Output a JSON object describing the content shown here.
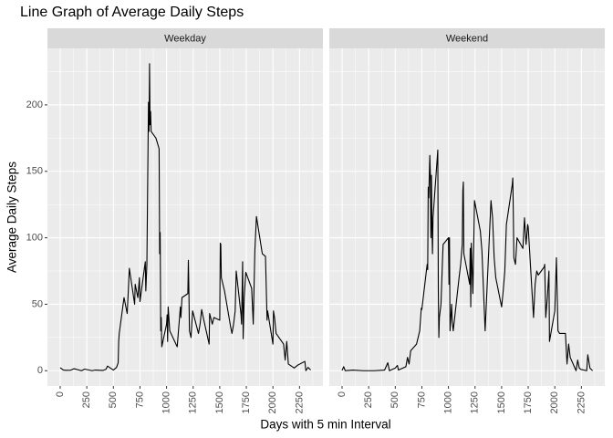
{
  "title": "Line Graph of Average Daily Steps",
  "x_label": "Days with 5 min Interval",
  "y_label": "Average Daily Steps",
  "chart_data": [
    {
      "type": "line",
      "title": "Weekday",
      "x": [
        0,
        30,
        55,
        100,
        130,
        200,
        230,
        300,
        330,
        400,
        430,
        445,
        500,
        530,
        545,
        550,
        555,
        600,
        630,
        645,
        650,
        700,
        705,
        730,
        745,
        750,
        800,
        805,
        815,
        830,
        835,
        840,
        845,
        850,
        855,
        900,
        930,
        935,
        940,
        945,
        950,
        955,
        1000,
        1005,
        1010,
        1015,
        1030,
        1100,
        1130,
        1135,
        1145,
        1200,
        1205,
        1210,
        1215,
        1230,
        1245,
        1300,
        1315,
        1330,
        1345,
        1400,
        1405,
        1430,
        1445,
        1500,
        1505,
        1510,
        1515,
        1545,
        1600,
        1615,
        1630,
        1645,
        1655,
        1700,
        1705,
        1715,
        1720,
        1730,
        1745,
        1800,
        1815,
        1830,
        1845,
        1900,
        1930,
        1945,
        1950,
        2000,
        2005,
        2015,
        2030,
        2100,
        2115,
        2130,
        2145,
        2200,
        2230,
        2300,
        2310,
        2330,
        2355
      ],
      "series": [
        {
          "color": "#000000",
          "values": [
            2.3,
            0.5,
            0.3,
            0.4,
            1.5,
            0,
            1.2,
            0,
            0.5,
            0.2,
            1,
            3.5,
            0.5,
            2.5,
            6,
            22,
            28,
            55,
            43,
            68,
            77,
            50,
            65,
            55,
            70,
            52,
            82,
            60,
            80,
            202,
            180,
            231,
            185,
            195,
            180,
            175,
            167,
            88,
            104,
            30,
            40,
            18,
            35,
            42,
            22,
            48,
            30,
            18,
            48,
            40,
            55,
            58,
            83,
            60,
            30,
            25,
            45,
            28,
            35,
            46,
            40,
            20,
            43,
            35,
            40,
            38,
            96,
            95,
            70,
            60,
            34,
            28,
            35,
            45,
            75,
            42,
            35,
            82,
            24,
            55,
            74,
            62,
            35,
            90,
            116,
            88,
            86,
            38,
            45,
            20,
            45,
            40,
            28,
            20,
            8,
            22,
            5,
            2,
            4,
            7,
            0,
            2.5,
            0.5
          ]
        }
      ],
      "xlim": [
        -120,
        2470
      ],
      "ylim": [
        -11.5,
        242.5
      ],
      "xticks": [
        0,
        250,
        500,
        750,
        1000,
        1250,
        1500,
        1750,
        2000,
        2250
      ],
      "yticks": [
        0,
        50,
        100,
        150,
        200
      ],
      "grid": true
    },
    {
      "type": "line",
      "title": "Weekend",
      "x": [
        0,
        15,
        30,
        100,
        200,
        300,
        400,
        430,
        445,
        500,
        520,
        530,
        600,
        615,
        630,
        645,
        700,
        715,
        730,
        745,
        750,
        800,
        805,
        810,
        815,
        825,
        830,
        835,
        840,
        845,
        850,
        855,
        900,
        905,
        910,
        915,
        930,
        945,
        950,
        1000,
        1005,
        1010,
        1015,
        1030,
        1035,
        1045,
        1100,
        1115,
        1130,
        1135,
        1140,
        1145,
        1200,
        1205,
        1210,
        1215,
        1230,
        1245,
        1300,
        1315,
        1330,
        1345,
        1400,
        1415,
        1430,
        1445,
        1500,
        1515,
        1530,
        1545,
        1600,
        1605,
        1610,
        1615,
        1630,
        1645,
        1700,
        1715,
        1730,
        1745,
        1750,
        1800,
        1815,
        1830,
        1845,
        1900,
        1905,
        1915,
        1930,
        1945,
        1950,
        2000,
        2015,
        2030,
        2045,
        2100,
        2115,
        2130,
        2145,
        2200,
        2215,
        2230,
        2245,
        2300,
        2310,
        2330,
        2355
      ],
      "series": [
        {
          "color": "#000000",
          "values": [
            0.2,
            3,
            0,
            0.5,
            0,
            0,
            0.5,
            6,
            0,
            2,
            4,
            0.5,
            3,
            10,
            5,
            15,
            20,
            25,
            30,
            47,
            46,
            80,
            76,
            138,
            130,
            162,
            148,
            100,
            147,
            110,
            88,
            115,
            166,
            60,
            25,
            40,
            50,
            85,
            95,
            100,
            65,
            100,
            30,
            50,
            38,
            30,
            70,
            80,
            95,
            135,
            142,
            88,
            65,
            92,
            48,
            96,
            58,
            128,
            105,
            90,
            60,
            30,
            128,
            115,
            85,
            70,
            48,
            60,
            75,
            110,
            140,
            145,
            120,
            85,
            80,
            100,
            92,
            115,
            95,
            110,
            108,
            40,
            65,
            75,
            72,
            78,
            80,
            40,
            55,
            75,
            22,
            45,
            85,
            30,
            28,
            28,
            5,
            20,
            10,
            0,
            8,
            2,
            1,
            0,
            12,
            2,
            0
          ]
        }
      ],
      "xlim": [
        -120,
        2470
      ],
      "ylim": [
        -11.5,
        242.5
      ],
      "xticks": [
        0,
        250,
        500,
        750,
        1000,
        1250,
        1500,
        1750,
        2000,
        2250
      ],
      "yticks": [
        0,
        50,
        100,
        150,
        200
      ],
      "grid": true
    }
  ]
}
